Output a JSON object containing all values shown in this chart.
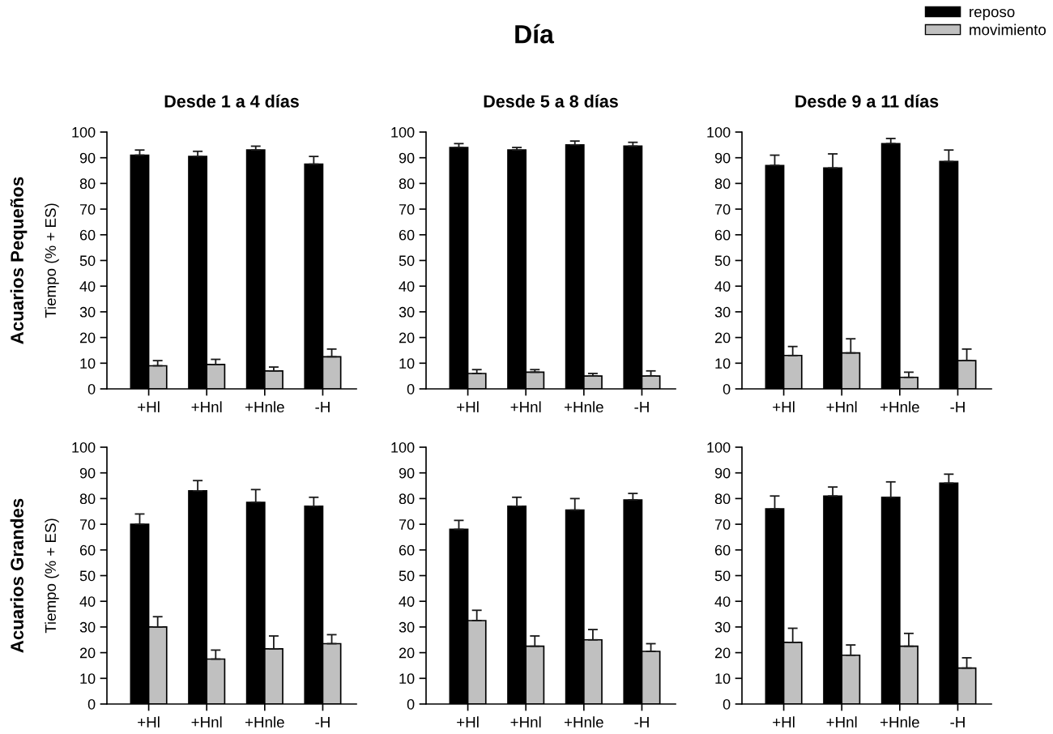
{
  "chart_data": [
    {
      "type": "bar",
      "title": "Desde 1 a 4 días",
      "ylabel": "Tiempo (% + ES)",
      "legend": "top right",
      "annotations": [
        "Día",
        "Acuarios Pequeños"
      ],
      "categories": [
        "+Hl",
        "+Hnl",
        "+Hnle",
        "-H"
      ],
      "series": [
        {
          "name": "reposo",
          "color": "#000000",
          "values": [
            91,
            90.5,
            93,
            87.5
          ],
          "errors": [
            [
              91,
              93
            ],
            [
              90.5,
              92.5
            ],
            [
              93,
              94.5
            ],
            [
              87.5,
              90.5
            ]
          ]
        },
        {
          "name": "movimiento",
          "color": "#c0c0c0",
          "values": [
            9,
            9.5,
            7,
            12.5
          ],
          "errors": [
            [
              9,
              11
            ],
            [
              9.5,
              11.5
            ],
            [
              7,
              8.5
            ],
            [
              12.5,
              15.5
            ]
          ]
        }
      ],
      "ylim": [
        0,
        100
      ],
      "yticks": [
        0,
        10,
        20,
        30,
        40,
        50,
        60,
        70,
        80,
        90,
        100
      ]
    },
    {
      "type": "bar",
      "title": "Desde 5 a 8 días",
      "categories": [
        "+Hl",
        "+Hnl",
        "+Hnle",
        "-H"
      ],
      "series": [
        {
          "name": "reposo",
          "color": "#000000",
          "values": [
            94,
            93,
            95,
            94.5
          ],
          "errors": [
            [
              94,
              95.5
            ],
            [
              93,
              94
            ],
            [
              95,
              96.5
            ],
            [
              94.5,
              96
            ]
          ]
        },
        {
          "name": "movimiento",
          "color": "#c0c0c0",
          "values": [
            6,
            6.5,
            5,
            5
          ],
          "errors": [
            [
              6,
              7.5
            ],
            [
              6.5,
              7.5
            ],
            [
              5,
              6
            ],
            [
              5,
              7
            ]
          ]
        }
      ],
      "ylim": [
        0,
        100
      ],
      "yticks": [
        0,
        10,
        20,
        30,
        40,
        50,
        60,
        70,
        80,
        90,
        100
      ]
    },
    {
      "type": "bar",
      "title": "Desde 9 a 11 días",
      "categories": [
        "+Hl",
        "+Hnl",
        "+Hnle",
        "-H"
      ],
      "series": [
        {
          "name": "reposo",
          "color": "#000000",
          "values": [
            87,
            86,
            95.5,
            88.5
          ],
          "errors": [
            [
              87,
              91
            ],
            [
              86,
              91.5
            ],
            [
              95.5,
              97.5
            ],
            [
              88.5,
              93
            ]
          ]
        },
        {
          "name": "movimiento",
          "color": "#c0c0c0",
          "values": [
            13,
            14,
            4.5,
            11
          ],
          "errors": [
            [
              13,
              16.5
            ],
            [
              14,
              19.5
            ],
            [
              4.5,
              6.5
            ],
            [
              11,
              15.5
            ]
          ]
        }
      ],
      "ylim": [
        0,
        100
      ],
      "yticks": [
        0,
        10,
        20,
        30,
        40,
        50,
        60,
        70,
        80,
        90,
        100
      ]
    },
    {
      "type": "bar",
      "ylabel": "Tiempo (% + ES)",
      "annotations": [
        "Acuarios Grandes"
      ],
      "categories": [
        "+Hl",
        "+Hnl",
        "+Hnle",
        "-H"
      ],
      "series": [
        {
          "name": "reposo",
          "color": "#000000",
          "values": [
            70,
            83,
            78.5,
            77
          ],
          "errors": [
            [
              70,
              74
            ],
            [
              83,
              87
            ],
            [
              78.5,
              83.5
            ],
            [
              77,
              80.5
            ]
          ]
        },
        {
          "name": "movimiento",
          "color": "#c0c0c0",
          "values": [
            30,
            17.5,
            21.5,
            23.5
          ],
          "errors": [
            [
              30,
              34
            ],
            [
              17.5,
              21
            ],
            [
              21.5,
              26.5
            ],
            [
              23.5,
              27
            ]
          ]
        }
      ],
      "ylim": [
        0,
        100
      ],
      "yticks": [
        0,
        10,
        20,
        30,
        40,
        50,
        60,
        70,
        80,
        90,
        100
      ]
    },
    {
      "type": "bar",
      "categories": [
        "+Hl",
        "+Hnl",
        "+Hnle",
        "-H"
      ],
      "series": [
        {
          "name": "reposo",
          "color": "#000000",
          "values": [
            68,
            77,
            75.5,
            79.5
          ],
          "errors": [
            [
              68,
              71.5
            ],
            [
              77,
              80.5
            ],
            [
              75.5,
              80
            ],
            [
              79.5,
              82
            ]
          ]
        },
        {
          "name": "movimiento",
          "color": "#c0c0c0",
          "values": [
            32.5,
            22.5,
            25,
            20.5
          ],
          "errors": [
            [
              32.5,
              36.5
            ],
            [
              22.5,
              26.5
            ],
            [
              25,
              29
            ],
            [
              20.5,
              23.5
            ]
          ]
        }
      ],
      "ylim": [
        0,
        100
      ],
      "yticks": [
        0,
        10,
        20,
        30,
        40,
        50,
        60,
        70,
        80,
        90,
        100
      ]
    },
    {
      "type": "bar",
      "categories": [
        "+Hl",
        "+Hnl",
        "+Hnle",
        "-H"
      ],
      "series": [
        {
          "name": "reposo",
          "color": "#000000",
          "values": [
            76,
            81,
            80.5,
            86
          ],
          "errors": [
            [
              76,
              81
            ],
            [
              81,
              84.5
            ],
            [
              80.5,
              86.5
            ],
            [
              86,
              89.5
            ]
          ]
        },
        {
          "name": "movimiento",
          "color": "#c0c0c0",
          "values": [
            24,
            19,
            22.5,
            14
          ],
          "errors": [
            [
              24,
              29.5
            ],
            [
              19,
              23
            ],
            [
              22.5,
              27.5
            ],
            [
              14,
              18
            ]
          ]
        }
      ],
      "ylim": [
        0,
        100
      ],
      "yticks": [
        0,
        10,
        20,
        30,
        40,
        50,
        60,
        70,
        80,
        90,
        100
      ]
    }
  ]
}
